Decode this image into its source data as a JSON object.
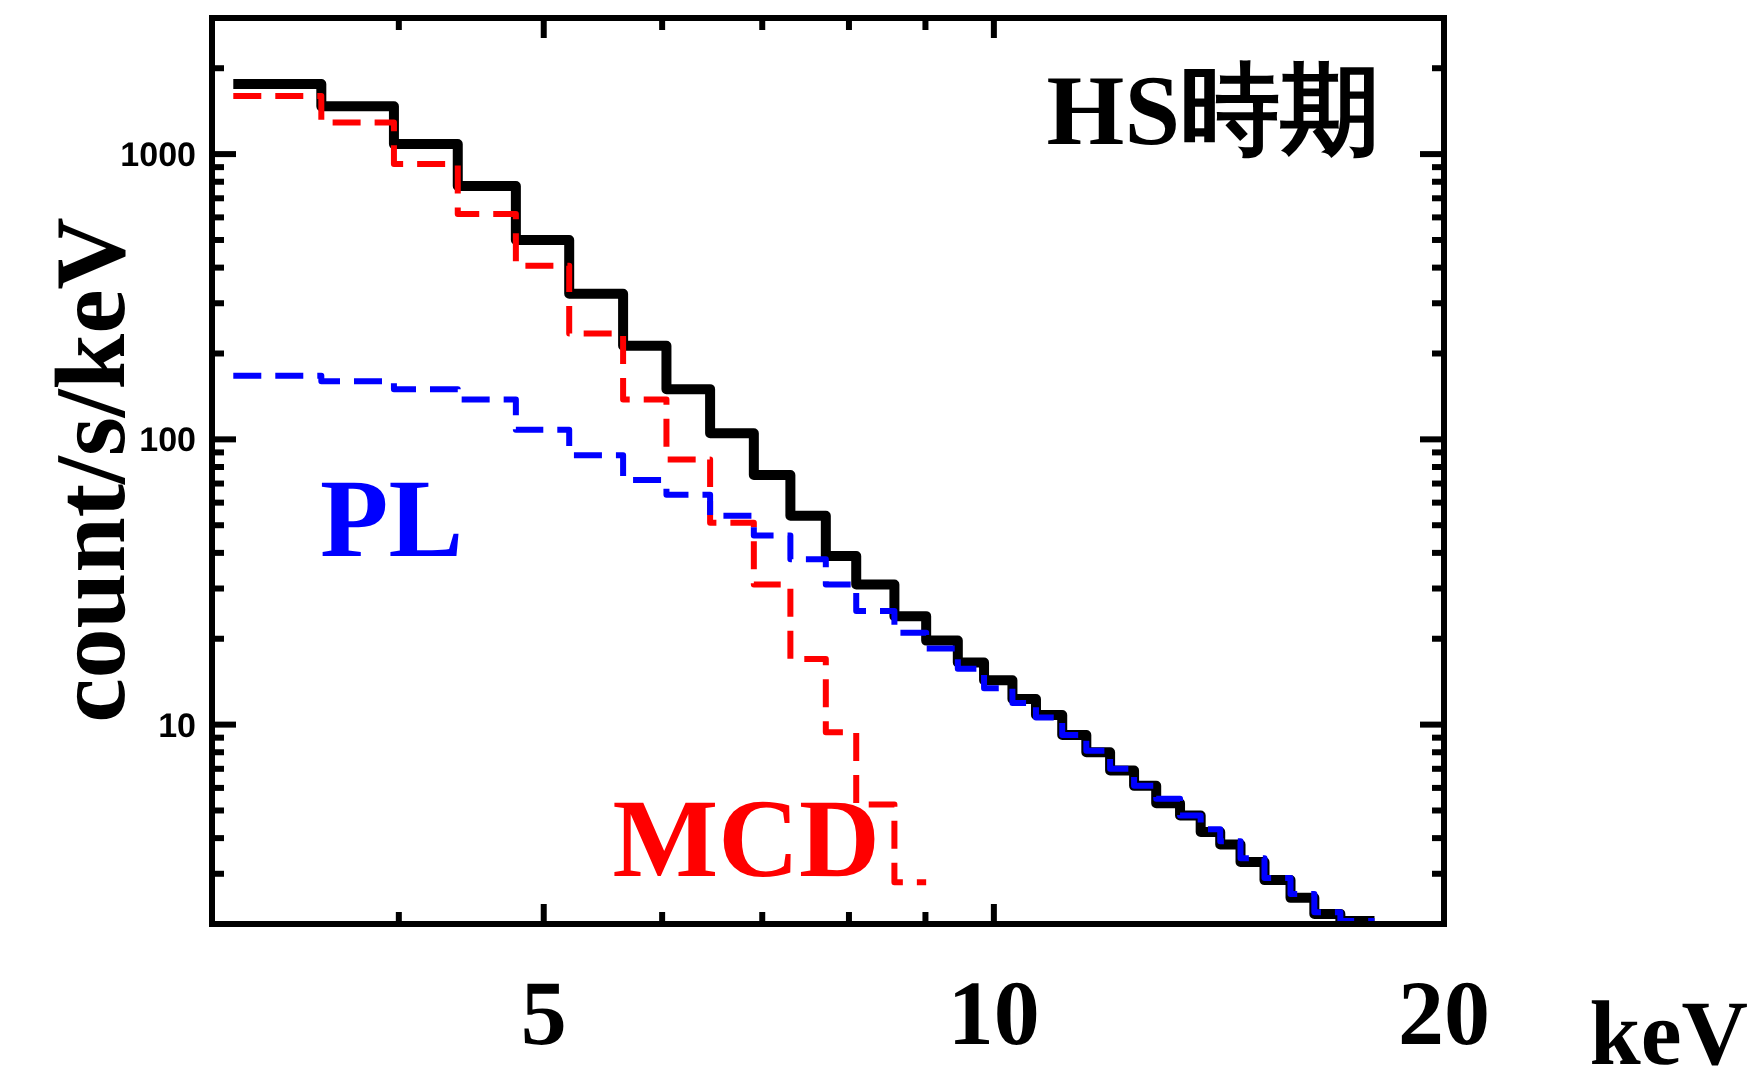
{
  "chart_data": {
    "type": "step",
    "title": "HS時期",
    "xlabel": "keV",
    "ylabel": "count/s/keV",
    "log": "xy",
    "xlim": [
      3,
      20
    ],
    "ylim": [
      2,
      3000
    ],
    "xticks": [
      {
        "value": 4,
        "label": null
      },
      5,
      {
        "value": 6,
        "label": null
      },
      {
        "value": 7,
        "label": null
      },
      {
        "value": 8,
        "label": null
      },
      {
        "value": 9,
        "label": null
      },
      10,
      20
    ],
    "yticks": [
      {
        "value": 3,
        "label": null
      },
      {
        "value": 4,
        "label": null
      },
      {
        "value": 5,
        "label": null
      },
      {
        "value": 6,
        "label": null
      },
      {
        "value": 7,
        "label": null
      },
      {
        "value": 8,
        "label": null
      },
      {
        "value": 9,
        "label": null
      },
      10,
      {
        "value": 20,
        "label": null
      },
      {
        "value": 30,
        "label": null
      },
      {
        "value": 40,
        "label": null
      },
      {
        "value": 50,
        "label": null
      },
      {
        "value": 60,
        "label": null
      },
      {
        "value": 70,
        "label": null
      },
      {
        "value": 80,
        "label": null
      },
      {
        "value": 90,
        "label": null
      },
      100,
      {
        "value": 200,
        "label": null
      },
      {
        "value": 300,
        "label": null
      },
      {
        "value": 400,
        "label": null
      },
      {
        "value": 500,
        "label": null
      },
      {
        "value": 600,
        "label": null
      },
      {
        "value": 700,
        "label": null
      },
      {
        "value": 800,
        "label": null
      },
      {
        "value": 900,
        "label": null
      },
      1000,
      {
        "value": 2000,
        "label": null
      }
    ],
    "series": [
      {
        "color": "#000000",
        "line_style": "solid",
        "x": [
          3.1,
          3.55,
          3.97,
          4.38,
          4.79,
          5.2,
          5.65,
          6.04,
          6.46,
          6.91,
          7.31,
          7.72,
          8.09,
          8.58,
          9.01,
          9.46,
          9.85,
          10.29,
          10.67,
          11.11,
          11.53,
          11.96,
          12.41,
          12.84,
          13.32,
          13.75,
          14.17,
          14.62,
          15.17,
          15.79,
          16.38,
          17.05,
          17.97
        ],
        "values": [
          1760,
          1470,
          1084,
          773,
          500,
          324,
          213,
          150,
          105,
          75,
          54,
          39,
          31,
          24,
          19.7,
          16.5,
          14.3,
          12.3,
          10.8,
          9.2,
          8.0,
          6.9,
          6.1,
          5.3,
          4.8,
          4.2,
          3.8,
          3.3,
          2.85,
          2.47,
          2.17,
          2.05,
          2.05
        ]
      },
      {
        "name": "MCD",
        "color": "#ff0000",
        "line_style": "dashed",
        "x": [
          3.1,
          3.55,
          3.97,
          4.38,
          4.79,
          5.2,
          5.65,
          6.04,
          6.46,
          6.91,
          7.31,
          7.72,
          8.09,
          8.58,
          9.01
        ],
        "values": [
          1600,
          1290,
          923,
          617,
          406,
          235,
          138,
          85,
          51,
          31,
          17,
          9.4,
          5.25,
          2.8,
          2.8
        ]
      },
      {
        "name": "PL",
        "color": "#0000ff",
        "line_style": "dashed",
        "x": [
          3.1,
          3.55,
          3.97,
          4.38,
          4.79,
          5.2,
          5.65,
          6.04,
          6.46,
          6.91,
          7.31,
          7.72,
          8.09,
          8.58,
          9.01,
          9.46,
          9.85,
          10.29,
          10.67,
          11.11,
          11.53,
          11.96,
          12.41,
          12.84,
          13.32,
          13.75,
          14.17,
          14.62,
          15.17,
          15.79,
          16.38,
          17.05,
          17.97
        ],
        "values": [
          167,
          160,
          150,
          138,
          108,
          88,
          72,
          64,
          54,
          46,
          38,
          31,
          25,
          21,
          18.5,
          15.7,
          13.4,
          11.9,
          10.6,
          9.2,
          8.1,
          7.0,
          6.1,
          5.5,
          4.8,
          4.3,
          3.9,
          3.4,
          2.9,
          2.55,
          2.2,
          2.05,
          2.05
        ]
      }
    ]
  }
}
